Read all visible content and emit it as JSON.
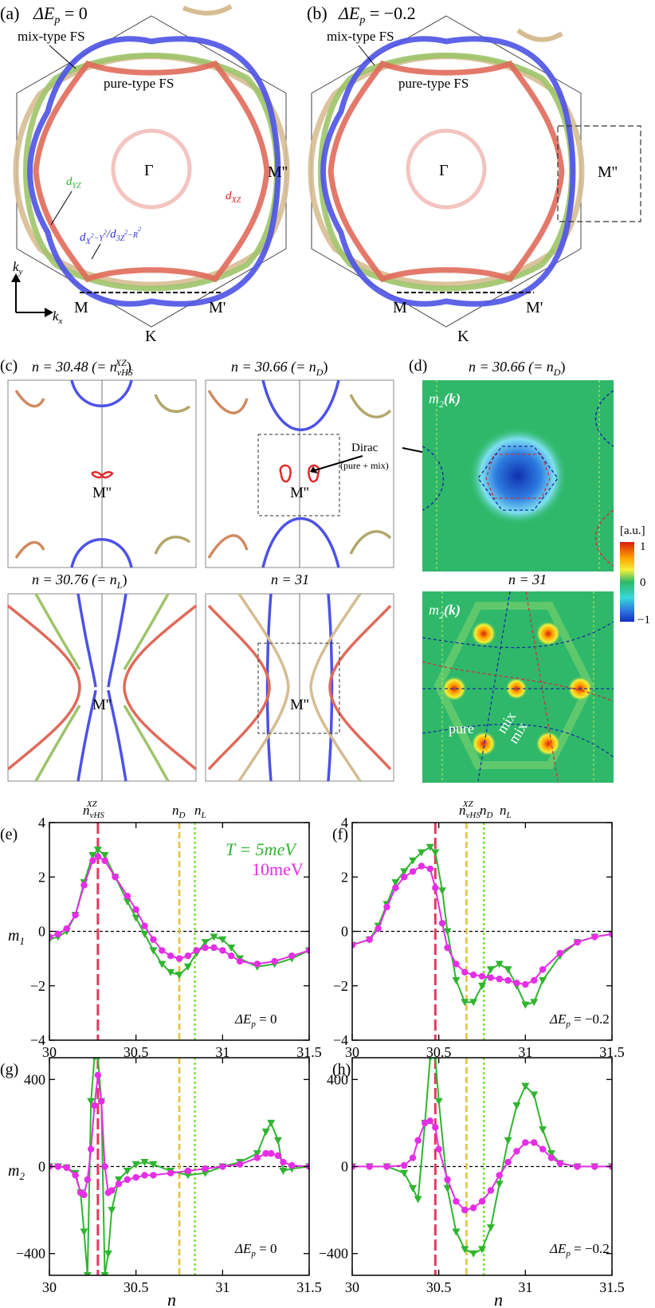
{
  "colors": {
    "xz": "#e06a5a",
    "yz": "#9dc46a",
    "eg": "#4c52e6",
    "mix": "#d6bc92",
    "gamma": "#f3c4c0",
    "green_curve": "#2fb52f",
    "magenta_curve": "#e52ee5",
    "vhs_line": "#e8375f",
    "nD_line": "#e3c233",
    "nL_line": "#7ce33a",
    "map_bg": "#2fb86a"
  },
  "panel_a": {
    "label": "(a)",
    "delta": "ΔE",
    "delta_sub": "p",
    "delta_val": " = 0",
    "mix_fs": "mix-type FS",
    "pure_fs": "pure-type FS",
    "gamma": "Γ",
    "m": "M",
    "m_prime": "M'",
    "m_dprime": "M''",
    "k": "K",
    "kx": "k",
    "kx_sub": "x",
    "ky": "k",
    "ky_sub": "y",
    "yz": "d",
    "yz_sub": "YZ",
    "xz": "d",
    "xz_sub": "XZ",
    "eg": "d",
    "eg_sub1": "X",
    "eg_sup1": "2",
    "eg_sub1b": "−Y",
    "eg_sup1b": "2",
    "eg_slash": "/d",
    "eg_sub2": "3Z",
    "eg_sup2": "2",
    "eg_sub2b": "−R",
    "eg_sup2b": "2"
  },
  "panel_b": {
    "label": "(b)",
    "delta": "ΔE",
    "delta_sub": "p",
    "delta_val": " = −0.2",
    "mix_fs": "mix-type FS",
    "pure_fs": "pure-type FS",
    "gamma": "Γ",
    "m": "M",
    "m_prime": "M'",
    "m_dprime": "M''",
    "k": "K"
  },
  "panel_c": {
    "label": "(c)",
    "titles": [
      {
        "pre": "n = 30.48 (= n",
        "sub": "vHS",
        "sup": "XZ",
        "post": ")"
      },
      {
        "pre": "n = 30.66 (= n",
        "sub": "D",
        "sup": "",
        "post": ")"
      },
      {
        "pre": "n = 30.76 (= n",
        "sub": "L",
        "sup": "",
        "post": ")"
      },
      {
        "pre": "n = 31",
        "sub": "",
        "sup": "",
        "post": ""
      }
    ],
    "m_dprime": "M''",
    "dirac": "Dirac",
    "dirac_note": "(pure + mix)"
  },
  "panel_d": {
    "label": "(d)",
    "title_top": {
      "pre": "n = 30.66 (= n",
      "sub": "D",
      "post": ")"
    },
    "title_bottom": "n = 31",
    "m2k": "m",
    "m2k_sub": "2",
    "m2k_arg": "(k)",
    "colorbar_unit": "[a.u.]",
    "colorbar_ticks": [
      "1",
      "0",
      "−1"
    ],
    "pure": "pure",
    "mix1": "mix",
    "mix2": "mix"
  },
  "panels_efgh": {
    "labels": [
      "(e)",
      "(f)",
      "(g)",
      "(h)"
    ],
    "top_labels": {
      "vhs": "n",
      "vhs_sub": "vHS",
      "vhs_sup": "XZ",
      "nD": "n",
      "nD_sub": "D",
      "nL": "n",
      "nL_sub": "L"
    },
    "ylabel_m1": "m",
    "ylabel_m1_sub": "1",
    "ylabel_m2": "m",
    "ylabel_m2_sub": "2",
    "xlabel": "n",
    "legend_T": "T = 5meV",
    "legend_T2": "10meV",
    "delta_left": "ΔE",
    "delta_left_sub": "p",
    "delta_left_val": " = 0",
    "delta_right": "ΔE",
    "delta_right_sub": "p",
    "delta_right_val": " = −0.2",
    "x_ticks": [
      "30",
      "30.5",
      "31",
      "31.5"
    ],
    "m1_ticks": [
      "4",
      "2",
      "0",
      "−2",
      "−4"
    ],
    "m2_ticks": [
      "400",
      "0",
      "−400"
    ]
  },
  "chart_data": [
    {
      "type": "line",
      "panel": "(e)",
      "xlabel": "n",
      "ylabel": "m1",
      "xlim": [
        30,
        31.5
      ],
      "ylim": [
        -4,
        4
      ],
      "vlines": {
        "vhs": 30.28,
        "nD": 30.75,
        "nL": 30.84
      },
      "series": [
        {
          "name": "T = 5meV",
          "x": [
            30.0,
            30.05,
            30.1,
            30.15,
            30.2,
            30.25,
            30.28,
            30.32,
            30.38,
            30.45,
            30.5,
            30.55,
            30.6,
            30.65,
            30.7,
            30.75,
            30.8,
            30.85,
            30.9,
            30.95,
            31.0,
            31.05,
            31.1,
            31.2,
            31.3,
            31.4,
            31.5
          ],
          "values": [
            -0.3,
            -0.2,
            0.0,
            0.6,
            1.8,
            2.8,
            3.0,
            2.8,
            2.0,
            1.1,
            0.5,
            -0.1,
            -0.7,
            -1.2,
            -1.5,
            -1.6,
            -1.3,
            -0.8,
            -0.4,
            -0.2,
            -0.3,
            -0.6,
            -1.0,
            -1.3,
            -1.2,
            -1.0,
            -0.7
          ]
        },
        {
          "name": "10meV",
          "x": [
            30.0,
            30.05,
            30.1,
            30.15,
            30.2,
            30.25,
            30.28,
            30.32,
            30.38,
            30.45,
            30.5,
            30.55,
            30.6,
            30.65,
            30.7,
            30.75,
            30.8,
            30.85,
            30.9,
            30.95,
            31.0,
            31.05,
            31.1,
            31.2,
            31.3,
            31.4,
            31.5
          ],
          "values": [
            -0.2,
            -0.1,
            0.1,
            0.6,
            1.7,
            2.6,
            2.75,
            2.6,
            2.0,
            1.3,
            0.8,
            0.2,
            -0.3,
            -0.7,
            -0.9,
            -1.0,
            -0.9,
            -0.7,
            -0.6,
            -0.6,
            -0.7,
            -0.9,
            -1.1,
            -1.2,
            -1.1,
            -0.9,
            -0.7
          ]
        }
      ]
    },
    {
      "type": "line",
      "panel": "(f)",
      "xlabel": "n",
      "ylabel": "m1",
      "xlim": [
        30,
        31.5
      ],
      "ylim": [
        -4,
        4
      ],
      "vlines": {
        "vhs": 30.48,
        "nD": 30.66,
        "nL": 30.76
      },
      "series": [
        {
          "name": "T = 5meV",
          "x": [
            30.0,
            30.1,
            30.15,
            30.2,
            30.25,
            30.3,
            30.35,
            30.4,
            30.45,
            30.48,
            30.52,
            30.55,
            30.6,
            30.65,
            30.7,
            30.75,
            30.8,
            30.85,
            30.9,
            30.95,
            31.0,
            31.05,
            31.1,
            31.2,
            31.3,
            31.4,
            31.5
          ],
          "values": [
            -0.5,
            -0.3,
            0.2,
            1.0,
            1.8,
            2.2,
            2.6,
            2.9,
            3.1,
            2.9,
            1.5,
            0.0,
            -1.8,
            -2.6,
            -2.6,
            -2.0,
            -1.4,
            -1.2,
            -1.4,
            -2.0,
            -2.7,
            -2.6,
            -1.8,
            -0.9,
            -0.4,
            -0.2,
            -0.1
          ]
        },
        {
          "name": "10meV",
          "x": [
            30.0,
            30.1,
            30.15,
            30.2,
            30.25,
            30.3,
            30.35,
            30.4,
            30.45,
            30.48,
            30.52,
            30.55,
            30.6,
            30.65,
            30.7,
            30.75,
            30.8,
            30.85,
            30.9,
            30.95,
            31.0,
            31.05,
            31.1,
            31.2,
            31.3,
            31.4,
            31.5
          ],
          "values": [
            -0.5,
            -0.3,
            0.1,
            0.9,
            1.6,
            2.0,
            2.2,
            2.4,
            2.3,
            1.6,
            0.3,
            -0.6,
            -1.2,
            -1.5,
            -1.6,
            -1.65,
            -1.7,
            -1.75,
            -1.8,
            -1.9,
            -1.95,
            -1.8,
            -1.4,
            -0.8,
            -0.4,
            -0.2,
            -0.1
          ]
        }
      ]
    },
    {
      "type": "line",
      "panel": "(g)",
      "xlabel": "n",
      "ylabel": "m2",
      "xlim": [
        30,
        31.5
      ],
      "ylim": [
        -500,
        500
      ],
      "vlines": {
        "vhs": 30.28,
        "nD": 30.75,
        "nL": 30.84
      },
      "series": [
        {
          "name": "T = 5meV",
          "x": [
            30.0,
            30.05,
            30.1,
            30.15,
            30.18,
            30.2,
            30.22,
            30.24,
            30.26,
            30.28,
            30.3,
            30.32,
            30.34,
            30.36,
            30.4,
            30.45,
            30.5,
            30.55,
            30.6,
            30.7,
            30.8,
            30.9,
            31.0,
            31.1,
            31.2,
            31.25,
            31.28,
            31.32,
            31.35,
            31.4,
            31.5
          ],
          "values": [
            0,
            0,
            -5,
            -30,
            -120,
            -300,
            -500,
            300,
            500,
            500,
            300,
            -500,
            -400,
            -200,
            -60,
            -20,
            10,
            20,
            10,
            -20,
            -40,
            -30,
            0,
            20,
            60,
            160,
            200,
            120,
            -20,
            -10,
            0
          ]
        },
        {
          "name": "10meV",
          "x": [
            30.0,
            30.05,
            30.1,
            30.15,
            30.18,
            30.2,
            30.22,
            30.24,
            30.26,
            30.28,
            30.3,
            30.32,
            30.34,
            30.36,
            30.4,
            30.45,
            30.5,
            30.55,
            30.6,
            30.7,
            30.8,
            30.9,
            31.0,
            31.1,
            31.2,
            31.25,
            31.28,
            31.32,
            31.35,
            31.4,
            31.5
          ],
          "values": [
            0,
            0,
            -5,
            -40,
            -120,
            -130,
            -60,
            80,
            280,
            420,
            300,
            0,
            -120,
            -110,
            -80,
            -60,
            -50,
            -40,
            -40,
            -30,
            -20,
            -10,
            0,
            10,
            40,
            60,
            60,
            50,
            20,
            5,
            0
          ]
        }
      ]
    },
    {
      "type": "line",
      "panel": "(h)",
      "xlabel": "n",
      "ylabel": "m2",
      "xlim": [
        30,
        31.5
      ],
      "ylim": [
        -500,
        500
      ],
      "vlines": {
        "vhs": 30.48,
        "nD": 30.66,
        "nL": 30.76
      },
      "series": [
        {
          "name": "T = 5meV",
          "x": [
            30.0,
            30.1,
            30.2,
            30.3,
            30.35,
            30.38,
            30.42,
            30.45,
            30.48,
            30.5,
            30.55,
            30.6,
            30.65,
            30.7,
            30.75,
            30.8,
            30.85,
            30.9,
            30.95,
            31.0,
            31.05,
            31.1,
            31.15,
            31.2,
            31.3,
            31.4,
            31.5
          ],
          "values": [
            0,
            0,
            0,
            -30,
            -100,
            -150,
            200,
            500,
            500,
            300,
            -100,
            -300,
            -380,
            -400,
            -380,
            -280,
            -80,
            120,
            280,
            370,
            330,
            170,
            60,
            15,
            0,
            0,
            0
          ]
        },
        {
          "name": "10meV",
          "x": [
            30.0,
            30.1,
            30.2,
            30.3,
            30.35,
            30.38,
            30.42,
            30.45,
            30.48,
            30.5,
            30.55,
            30.6,
            30.65,
            30.7,
            30.75,
            30.8,
            30.85,
            30.9,
            30.95,
            31.0,
            31.05,
            31.1,
            31.15,
            31.2,
            31.3,
            31.4,
            31.5
          ],
          "values": [
            0,
            0,
            0,
            5,
            40,
            120,
            200,
            210,
            180,
            80,
            -60,
            -160,
            -200,
            -190,
            -160,
            -110,
            -40,
            20,
            70,
            110,
            110,
            80,
            40,
            15,
            0,
            0,
            0
          ]
        }
      ]
    }
  ]
}
